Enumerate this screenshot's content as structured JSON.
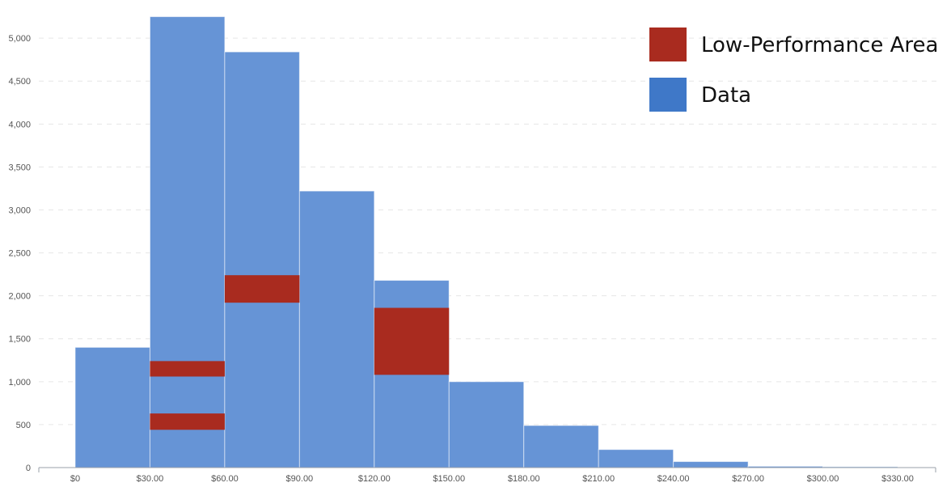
{
  "chart_data": {
    "type": "bar",
    "title": "",
    "xlabel": "",
    "ylabel": "",
    "bin_edges": [
      0,
      30,
      60,
      90,
      120,
      150,
      180,
      210,
      240,
      270,
      300,
      330
    ],
    "x_tick_labels": [
      "$0",
      "$30.00",
      "$60.00",
      "$90.00",
      "$120.00",
      "$150.00",
      "$180.00",
      "$210.00",
      "$240.00",
      "$270.00",
      "$300.00",
      "$330.00"
    ],
    "y_ticks": [
      0,
      500,
      1000,
      1500,
      2000,
      2500,
      3000,
      3500,
      4000,
      4500,
      5000
    ],
    "y_tick_labels": [
      "0",
      "500",
      "1,000",
      "1,500",
      "2,000",
      "2,500",
      "3,000",
      "3,500",
      "4,000",
      "4,500",
      "5,000"
    ],
    "ylim": [
      0,
      5350
    ],
    "grid": true,
    "legend_position": "top-right",
    "series": [
      {
        "name": "Data",
        "color": "#6694d6",
        "values": [
          1400,
          5250,
          4840,
          3220,
          2180,
          1000,
          490,
          210,
          70,
          15,
          10
        ]
      },
      {
        "name": "Low-Performance Area",
        "color": "#a92b1f",
        "regions": [
          {
            "x_start": 30,
            "x_end": 60,
            "y_low": 1060,
            "y_high": 1240
          },
          {
            "x_start": 30,
            "x_end": 60,
            "y_low": 440,
            "y_high": 630
          },
          {
            "x_start": 60,
            "x_end": 90,
            "y_low": 1920,
            "y_high": 2240
          },
          {
            "x_start": 120,
            "x_end": 150,
            "y_low": 1080,
            "y_high": 1860
          }
        ]
      }
    ]
  },
  "legend": {
    "items": [
      {
        "label": "Low-Performance Area",
        "color": "#a92b1f"
      },
      {
        "label": "Data",
        "color": "#3f78c8"
      }
    ]
  }
}
